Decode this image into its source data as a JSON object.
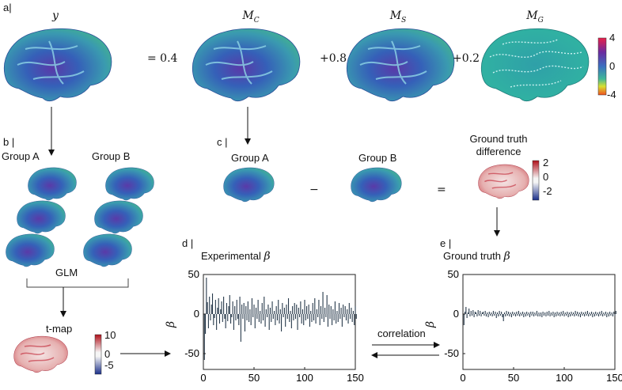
{
  "panels": {
    "a": "a|",
    "b": "b |",
    "c": "c |",
    "d": "d |",
    "e": "e |"
  },
  "top_row": {
    "y_label": "y",
    "mc_label": "M",
    "mc_sub": "C",
    "ms_label": "M",
    "ms_sub": "S",
    "mg_label": "M",
    "mg_sub": "G",
    "coef1": "= 0.4",
    "coef2": "+0.8",
    "coef3": "+0.2",
    "colorbar_ticks": [
      "4",
      "0",
      "-4"
    ]
  },
  "panel_b": {
    "group_a": "Group A",
    "group_b": "Group B",
    "glm": "GLM",
    "tmap": "t-map",
    "tmap_ticks": [
      "10",
      "0",
      "-5"
    ]
  },
  "panel_c": {
    "group_a": "Group A",
    "group_b": "Group B",
    "minus": "−",
    "equals": "=",
    "gt_line1": "Ground truth",
    "gt_line2": "difference",
    "gt_ticks": [
      "2",
      "0",
      "-2"
    ]
  },
  "panel_d": {
    "title": "Experimental ",
    "title_sym": "β",
    "ylabel": "β"
  },
  "panel_e": {
    "title": "Ground truth ",
    "title_sym": "β",
    "ylabel": "β",
    "correlation": "correlation"
  },
  "colors": {
    "brain_green": "#3fb58a",
    "brain_blue": "#3c5bb0",
    "heat_red": "#d0202a",
    "bar_fill": "#26384a"
  },
  "chart_data": [
    {
      "type": "bar",
      "title": "Experimental β",
      "xlabel": "",
      "ylabel": "β",
      "xlim": [
        0,
        150
      ],
      "ylim": [
        -70,
        50
      ],
      "xticks": [
        0,
        50,
        100,
        150
      ],
      "yticks": [
        50,
        0,
        -50
      ],
      "x_start": 1,
      "values": [
        -58,
        -25,
        46,
        15,
        -18,
        22,
        -8,
        12,
        26,
        -14,
        -5,
        18,
        -20,
        8,
        20,
        -12,
        6,
        16,
        -10,
        22,
        -6,
        -18,
        14,
        -9,
        10,
        24,
        -12,
        -4,
        16,
        -20,
        10,
        -8,
        18,
        -6,
        -14,
        22,
        -35,
        12,
        -6,
        14,
        -22,
        10,
        -8,
        16,
        -10,
        6,
        -14,
        20,
        -4,
        12,
        -18,
        8,
        -6,
        18,
        -10,
        4,
        -12,
        14,
        -8,
        22,
        -16,
        6,
        -4,
        12,
        -20,
        8,
        -10,
        16,
        -6,
        4,
        -14,
        10,
        -8,
        18,
        -12,
        6,
        -22,
        14,
        -4,
        8,
        -16,
        12,
        -6,
        20,
        -10,
        4,
        -18,
        10,
        -8,
        14,
        -6,
        12,
        -20,
        8,
        -4,
        16,
        -12,
        6,
        -14,
        18,
        -8,
        10,
        -6,
        12,
        -16,
        4,
        -10,
        14,
        -8,
        20,
        -12,
        6,
        -4,
        18,
        -14,
        10,
        -6,
        28,
        -10,
        8,
        -4,
        24,
        -16,
        12,
        -6,
        10,
        -14,
        6,
        -8,
        16,
        -12,
        4,
        -10,
        14,
        -6,
        8,
        -16,
        12,
        -4,
        10,
        -8,
        6,
        -12,
        14,
        -6,
        8,
        -10,
        4,
        -14,
        10,
        -6
      ]
    },
    {
      "type": "bar",
      "title": "Ground truth β",
      "xlabel": "",
      "ylabel": "β",
      "xlim": [
        0,
        150
      ],
      "ylim": [
        -70,
        50
      ],
      "xticks": [
        0,
        50,
        100,
        150
      ],
      "yticks": [
        50,
        0,
        -50
      ],
      "x_start": 1,
      "values": [
        -14,
        3,
        9,
        -5,
        2,
        7,
        -3,
        4,
        -2,
        5,
        -4,
        3,
        2,
        -3,
        5,
        -2,
        4,
        -3,
        2,
        3,
        -2,
        4,
        -3,
        2,
        -4,
        3,
        -2,
        2,
        -3,
        4,
        -2,
        3,
        -5,
        2,
        -3,
        4,
        -2,
        3,
        -4,
        -9,
        2,
        -3,
        4,
        -2,
        3,
        -3,
        2,
        -4,
        3,
        -2,
        2,
        -3,
        3,
        -2,
        4,
        -3,
        2,
        -2,
        3,
        -4,
        2,
        -3,
        3,
        -2,
        2,
        -4,
        3,
        -2,
        3,
        -3,
        2,
        -2,
        4,
        -3,
        2,
        -3,
        2,
        -4,
        3,
        -2,
        2,
        -3,
        3,
        -2,
        4,
        -3,
        2,
        -2,
        3,
        -4,
        2,
        -3,
        3,
        -2,
        2,
        -3,
        3,
        -2,
        4,
        -3,
        2,
        -2,
        3,
        -4,
        2,
        -3,
        3,
        -2,
        2,
        -3,
        4,
        -2,
        3,
        -3,
        2,
        -4,
        3,
        -2,
        2,
        -3,
        3,
        -2,
        4,
        -3,
        2,
        -2,
        3,
        -4,
        2,
        -3,
        3,
        -2,
        2,
        -3,
        3,
        -2,
        4,
        -3,
        2,
        -2,
        3,
        -4,
        2,
        -3,
        3,
        -2,
        2,
        -3,
        3,
        -2,
        4
      ]
    }
  ]
}
